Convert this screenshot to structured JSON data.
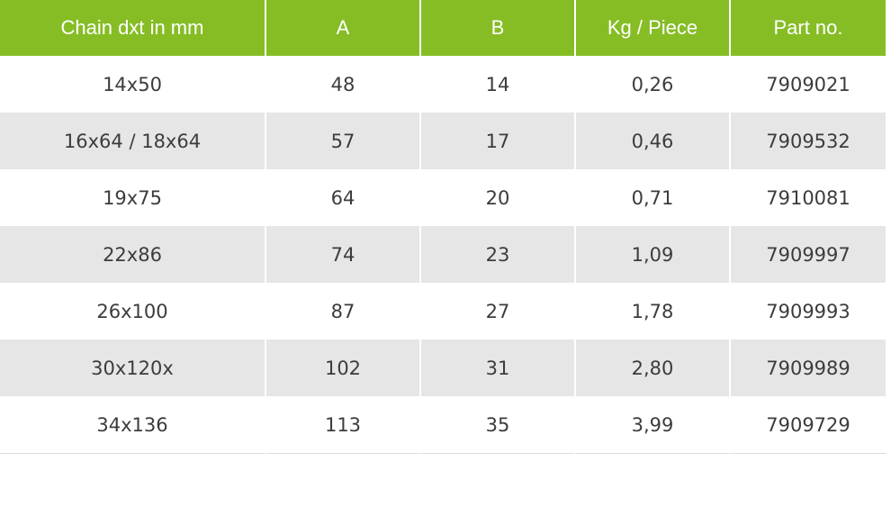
{
  "table": {
    "columns": [
      "Chain dxt in mm",
      "A",
      "B",
      "Kg / Piece",
      "Part no."
    ],
    "rows": [
      [
        "14x50",
        "48",
        "14",
        "0,26",
        "7909021"
      ],
      [
        "16x64 / 18x64",
        "57",
        "17",
        "0,46",
        "7909532"
      ],
      [
        "19x75",
        "64",
        "20",
        "0,71",
        "7910081"
      ],
      [
        "22x86",
        "74",
        "23",
        "1,09",
        "7909997"
      ],
      [
        "26x100",
        "87",
        "27",
        "1,78",
        "7909993"
      ],
      [
        "30x120x",
        "102",
        "31",
        "2,80",
        "7909989"
      ],
      [
        "34x136",
        "113",
        "35",
        "3,99",
        "7909729"
      ]
    ]
  },
  "colors": {
    "header_bg": "#86bd25",
    "header_text": "#ffffff",
    "stripe_bg": "#e6e6e6",
    "cell_text": "#3c3c3c"
  }
}
